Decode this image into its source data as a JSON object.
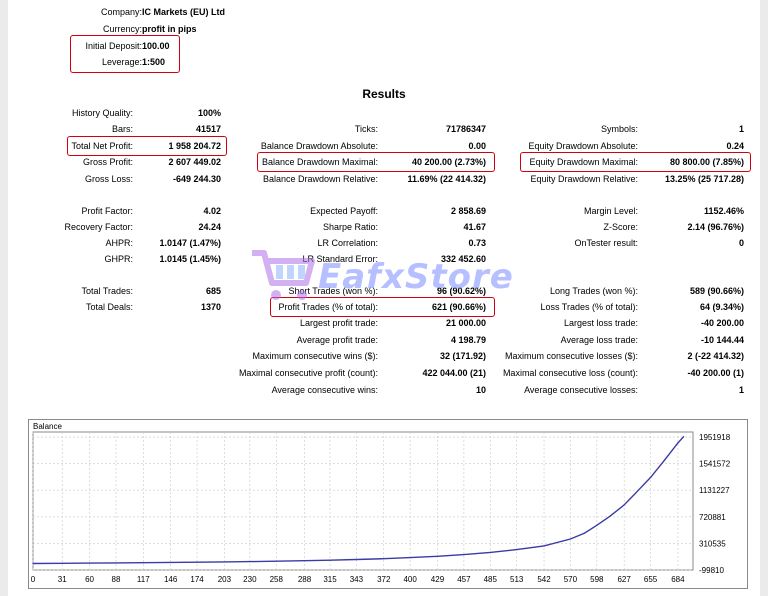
{
  "header": {
    "company_label": "Company:",
    "company_value": "IC Markets (EU) Ltd",
    "currency_label": "Currency:",
    "currency_value": "profit in pips",
    "deposit_label": "Initial Deposit:",
    "deposit_value": "100.00",
    "leverage_label": "Leverage:",
    "leverage_value": "1:500"
  },
  "results_title": "Results",
  "stats": {
    "history_quality": {
      "label": "History Quality:",
      "value": "100%"
    },
    "bars": {
      "label": "Bars:",
      "value": "41517"
    },
    "ticks": {
      "label": "Ticks:",
      "value": "71786347"
    },
    "symbols": {
      "label": "Symbols:",
      "value": "1"
    },
    "total_net_profit": {
      "label": "Total Net Profit:",
      "value": "1 958 204.72"
    },
    "balance_dd_abs": {
      "label": "Balance Drawdown Absolute:",
      "value": "0.00"
    },
    "equity_dd_abs": {
      "label": "Equity Drawdown Absolute:",
      "value": "0.24"
    },
    "gross_profit": {
      "label": "Gross Profit:",
      "value": "2 607 449.02"
    },
    "balance_dd_max": {
      "label": "Balance Drawdown Maximal:",
      "value": "40 200.00 (2.73%)"
    },
    "equity_dd_max": {
      "label": "Equity Drawdown Maximal:",
      "value": "80 800.00 (7.85%)"
    },
    "gross_loss": {
      "label": "Gross Loss:",
      "value": "-649 244.30"
    },
    "balance_dd_rel": {
      "label": "Balance Drawdown Relative:",
      "value": "11.69% (22 414.32)"
    },
    "equity_dd_rel": {
      "label": "Equity Drawdown Relative:",
      "value": "13.25% (25 717.28)"
    },
    "profit_factor": {
      "label": "Profit Factor:",
      "value": "4.02"
    },
    "expected_payoff": {
      "label": "Expected Payoff:",
      "value": "2 858.69"
    },
    "margin_level": {
      "label": "Margin Level:",
      "value": "1152.46%"
    },
    "recovery_factor": {
      "label": "Recovery Factor:",
      "value": "24.24"
    },
    "sharpe_ratio": {
      "label": "Sharpe Ratio:",
      "value": "41.67"
    },
    "z_score": {
      "label": "Z-Score:",
      "value": "2.14 (96.76%)"
    },
    "ahpr": {
      "label": "AHPR:",
      "value": "1.0147 (1.47%)"
    },
    "lr_correlation": {
      "label": "LR Correlation:",
      "value": "0.73"
    },
    "ontester": {
      "label": "OnTester result:",
      "value": "0"
    },
    "ghpr": {
      "label": "GHPR:",
      "value": "1.0145 (1.45%)"
    },
    "lr_std_error": {
      "label": "LR Standard Error:",
      "value": "332 452.60"
    },
    "total_trades": {
      "label": "Total Trades:",
      "value": "685"
    },
    "short_trades": {
      "label": "Short Trades (won %):",
      "value": "96 (90.62%)"
    },
    "long_trades": {
      "label": "Long Trades (won %):",
      "value": "589 (90.66%)"
    },
    "total_deals": {
      "label": "Total Deals:",
      "value": "1370"
    },
    "profit_trades": {
      "label": "Profit Trades (% of total):",
      "value": "621 (90.66%)"
    },
    "loss_trades": {
      "label": "Loss Trades (% of total):",
      "value": "64 (9.34%)"
    },
    "largest_profit": {
      "label": "Largest profit trade:",
      "value": "21 000.00"
    },
    "largest_loss": {
      "label": "Largest loss trade:",
      "value": "-40 200.00"
    },
    "avg_profit": {
      "label": "Average profit trade:",
      "value": "4 198.79"
    },
    "avg_loss": {
      "label": "Average loss trade:",
      "value": "-10 144.44"
    },
    "max_consec_wins": {
      "label": "Maximum consecutive wins ($):",
      "value": "32 (171.92)"
    },
    "max_consec_losses": {
      "label": "Maximum consecutive losses ($):",
      "value": "2 (-22 414.32)"
    },
    "maximal_consec_profit": {
      "label": "Maximal consecutive profit (count):",
      "value": "422 044.00 (21)"
    },
    "maximal_consec_loss": {
      "label": "Maximal consecutive loss (count):",
      "value": "-40 200.00 (1)"
    },
    "avg_consec_wins": {
      "label": "Average consecutive wins:",
      "value": "10"
    },
    "avg_consec_losses": {
      "label": "Average consecutive losses:",
      "value": "1"
    }
  },
  "watermark": {
    "text": "EafxStore"
  },
  "colors": {
    "highlight": "#d3000f",
    "balance_line": "#3a3aa8",
    "grid": "#c8c8c8",
    "watermark": "#7b8cff"
  },
  "chart_data": {
    "type": "line",
    "title": "Balance",
    "x_ticks": [
      "0",
      "31",
      "60",
      "88",
      "117",
      "146",
      "174",
      "203",
      "230",
      "258",
      "288",
      "315",
      "343",
      "372",
      "400",
      "429",
      "457",
      "485",
      "513",
      "542",
      "570",
      "598",
      "627",
      "655",
      "684"
    ],
    "y_ticks": [
      "1951918",
      "1541572",
      "1131227",
      "720881",
      "310535",
      "-99810"
    ],
    "xlim": [
      0,
      700
    ],
    "ylim": [
      -99810,
      2030000
    ],
    "series": [
      {
        "x": [
          0,
          31,
          60,
          88,
          117,
          146,
          174,
          203,
          230,
          258,
          288,
          315,
          343,
          372,
          400,
          429,
          457,
          485,
          513,
          542,
          570,
          585,
          598,
          612,
          627,
          640,
          655,
          670,
          684,
          690
        ],
        "values": [
          100,
          3000,
          6000,
          9500,
          13000,
          17000,
          21000,
          25000,
          30000,
          36000,
          44000,
          52000,
          62000,
          75000,
          92000,
          112000,
          138000,
          172000,
          215000,
          272000,
          378000,
          470000,
          590000,
          730000,
          905000,
          1100000,
          1330000,
          1600000,
          1860000,
          1958204
        ]
      }
    ]
  }
}
